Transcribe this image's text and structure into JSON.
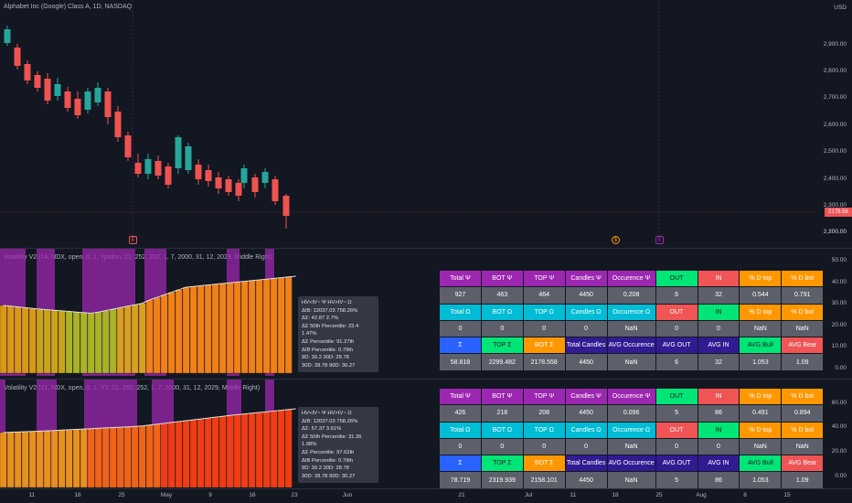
{
  "chart_header": {
    "title": "Alphabet Inc (Google) Class A, 1D, NASDAQ",
    "currency": "USD"
  },
  "price_axis": {
    "ticks": [
      "2,900.00",
      "2,800.00",
      "2,700.00",
      "2,600.00",
      "2,500.00",
      "2,400.00",
      "2,300.00",
      "2,200.00",
      "2,100.00"
    ],
    "last_price": "2178.56"
  },
  "events": [
    {
      "label": "E",
      "color": "#f05454"
    },
    {
      "label": "$",
      "color": "#ff9800"
    },
    {
      "label": "E",
      "color": "#9c27b0"
    }
  ],
  "indicator1": {
    "title": "Volatility V2 (14, NDX, open, 0, 1, Ypsilon, 21, 252, 252, 1, 7, 2000, 31, 12, 2029, Middle Right)",
    "axis_ticks": [
      "50.00",
      "40.00",
      "30.00",
      "20.00",
      "10.00",
      "0.00"
    ],
    "stats": [
      "HV<IV~ Ψ  HV>IV~ Ω",
      "ΔIB: 12037.03  758.26%",
      "ΔΣ: 42.87  2.7%",
      "ΔΣ 50th Percentile: 23.4  1.47%",
      "ΔΣ Percentile: 91.27th",
      "ΔIB Percentile: 0.79th",
      "9D: 30.2  30D: 28.78",
      "30D: 28.78  90D: 30.27"
    ],
    "table": [
      [
        {
          "t": "Total Ψ",
          "c": "c-purple"
        },
        {
          "t": "BOT Ψ",
          "c": "c-purple"
        },
        {
          "t": "TOP Ψ",
          "c": "c-purple"
        },
        {
          "t": "Candles Ψ",
          "c": "c-purple"
        },
        {
          "t": "Occurence Ψ",
          "c": "c-purple"
        },
        {
          "t": "OUT",
          "c": "c-green"
        },
        {
          "t": "IN",
          "c": "c-red"
        },
        {
          "t": "% D top",
          "c": "c-orange"
        },
        {
          "t": "% D bot",
          "c": "c-orange"
        }
      ],
      [
        {
          "t": "927",
          "c": "c-gray"
        },
        {
          "t": "463",
          "c": "c-gray"
        },
        {
          "t": "464",
          "c": "c-gray"
        },
        {
          "t": "4450",
          "c": "c-gray"
        },
        {
          "t": "0.208",
          "c": "c-gray"
        },
        {
          "t": "6",
          "c": "c-gray"
        },
        {
          "t": "32",
          "c": "c-gray"
        },
        {
          "t": "0.544",
          "c": "c-gray"
        },
        {
          "t": "0.791",
          "c": "c-gray"
        }
      ],
      [
        {
          "t": "Total Ω",
          "c": "c-cyan"
        },
        {
          "t": "BOT Ω",
          "c": "c-cyan"
        },
        {
          "t": "TOP Ω",
          "c": "c-cyan"
        },
        {
          "t": "Candles Ω",
          "c": "c-cyan"
        },
        {
          "t": "Occurence Ω",
          "c": "c-cyan"
        },
        {
          "t": "OUT",
          "c": "c-red"
        },
        {
          "t": "IN",
          "c": "c-green"
        },
        {
          "t": "% D top",
          "c": "c-orange"
        },
        {
          "t": "% D bot",
          "c": "c-orange"
        }
      ],
      [
        {
          "t": "0",
          "c": "c-gray"
        },
        {
          "t": "0",
          "c": "c-gray"
        },
        {
          "t": "0",
          "c": "c-gray"
        },
        {
          "t": "0",
          "c": "c-gray"
        },
        {
          "t": "NaN",
          "c": "c-gray"
        },
        {
          "t": "0",
          "c": "c-gray"
        },
        {
          "t": "0",
          "c": "c-gray"
        },
        {
          "t": "NaN",
          "c": "c-gray"
        },
        {
          "t": "NaN",
          "c": "c-gray"
        }
      ],
      [
        {
          "t": "Σ",
          "c": "c-blue"
        },
        {
          "t": "TOP Σ",
          "c": "c-green"
        },
        {
          "t": "BOT Σ",
          "c": "c-orange"
        },
        {
          "t": "Total Candles",
          "c": "c-dblue"
        },
        {
          "t": "AVG Occurence",
          "c": "c-dblue"
        },
        {
          "t": "AVG OUT",
          "c": "c-dblue"
        },
        {
          "t": "AVG IN",
          "c": "c-dblue"
        },
        {
          "t": "AVG Bull",
          "c": "c-green"
        },
        {
          "t": "AVG Bear",
          "c": "c-red"
        }
      ],
      [
        {
          "t": "58.818",
          "c": "c-gray"
        },
        {
          "t": "2299.482",
          "c": "c-gray"
        },
        {
          "t": "2178.558",
          "c": "c-gray"
        },
        {
          "t": "4450",
          "c": "c-gray"
        },
        {
          "t": "NaN",
          "c": "c-gray"
        },
        {
          "t": "6",
          "c": "c-gray"
        },
        {
          "t": "32",
          "c": "c-gray"
        },
        {
          "t": "1.053",
          "c": "c-gray"
        },
        {
          "t": "1.09",
          "c": "c-gray"
        }
      ]
    ]
  },
  "indicator2": {
    "title": "Volatility V2 (21, NDX, open, 0, 1, XY, 21, 252, 252, 1, 7, 2000, 31, 12, 2029, Middle Right)",
    "axis_ticks": [
      "60.00",
      "40.00",
      "20.00",
      "0.00"
    ],
    "stats": [
      "HV<IV~ Ψ  HV>IV~ Ω",
      "ΔIB: 12037.03  758.26%",
      "ΔΣ: 57.37  3.61%",
      "ΔΣ 50th Percentile: 31.36  1.98%",
      "ΔΣ Percentile: 97.62th",
      "ΔIB Percentile: 0.79th",
      "9D: 30.2  30D: 28.78",
      "30D: 28.78  90D: 30.27"
    ],
    "table": [
      [
        {
          "t": "Total Ψ",
          "c": "c-purple"
        },
        {
          "t": "BOT Ψ",
          "c": "c-purple"
        },
        {
          "t": "TOP Ψ",
          "c": "c-purple"
        },
        {
          "t": "Candles Ψ",
          "c": "c-purple"
        },
        {
          "t": "Occurence Ψ",
          "c": "c-purple"
        },
        {
          "t": "OUT",
          "c": "c-green"
        },
        {
          "t": "IN",
          "c": "c-red"
        },
        {
          "t": "% D top",
          "c": "c-orange"
        },
        {
          "t": "% D bot",
          "c": "c-orange"
        }
      ],
      [
        {
          "t": "426",
          "c": "c-gray"
        },
        {
          "t": "218",
          "c": "c-gray"
        },
        {
          "t": "208",
          "c": "c-gray"
        },
        {
          "t": "4450",
          "c": "c-gray"
        },
        {
          "t": "0.096",
          "c": "c-gray"
        },
        {
          "t": "5",
          "c": "c-gray"
        },
        {
          "t": "86",
          "c": "c-gray"
        },
        {
          "t": "0.491",
          "c": "c-gray"
        },
        {
          "t": "0.894",
          "c": "c-gray"
        }
      ],
      [
        {
          "t": "Total Ω",
          "c": "c-cyan"
        },
        {
          "t": "BOT Ω",
          "c": "c-cyan"
        },
        {
          "t": "TOP Ω",
          "c": "c-cyan"
        },
        {
          "t": "Candles Ω",
          "c": "c-cyan"
        },
        {
          "t": "Occurence Ω",
          "c": "c-cyan"
        },
        {
          "t": "OUT",
          "c": "c-red"
        },
        {
          "t": "IN",
          "c": "c-green"
        },
        {
          "t": "% D top",
          "c": "c-orange"
        },
        {
          "t": "% D bot",
          "c": "c-orange"
        }
      ],
      [
        {
          "t": "0",
          "c": "c-gray"
        },
        {
          "t": "0",
          "c": "c-gray"
        },
        {
          "t": "0",
          "c": "c-gray"
        },
        {
          "t": "0",
          "c": "c-gray"
        },
        {
          "t": "NaN",
          "c": "c-gray"
        },
        {
          "t": "0",
          "c": "c-gray"
        },
        {
          "t": "0",
          "c": "c-gray"
        },
        {
          "t": "NaN",
          "c": "c-gray"
        },
        {
          "t": "NaN",
          "c": "c-gray"
        }
      ],
      [
        {
          "t": "Σ",
          "c": "c-blue"
        },
        {
          "t": "TOP Σ",
          "c": "c-green"
        },
        {
          "t": "BOT Σ",
          "c": "c-orange"
        },
        {
          "t": "Total Candles",
          "c": "c-dblue"
        },
        {
          "t": "AVG Occurence",
          "c": "c-dblue"
        },
        {
          "t": "AVG OUT",
          "c": "c-dblue"
        },
        {
          "t": "AVG IN",
          "c": "c-dblue"
        },
        {
          "t": "AVG Bull",
          "c": "c-green"
        },
        {
          "t": "AVG Bear",
          "c": "c-red"
        }
      ],
      [
        {
          "t": "78.719",
          "c": "c-gray"
        },
        {
          "t": "2319.939",
          "c": "c-gray"
        },
        {
          "t": "2158.101",
          "c": "c-gray"
        },
        {
          "t": "4450",
          "c": "c-gray"
        },
        {
          "t": "NaN",
          "c": "c-gray"
        },
        {
          "t": "5",
          "c": "c-gray"
        },
        {
          "t": "86",
          "c": "c-gray"
        },
        {
          "t": "1.053",
          "c": "c-gray"
        },
        {
          "t": "1.09",
          "c": "c-gray"
        }
      ]
    ]
  },
  "time_axis": [
    "11",
    "18",
    "25",
    "May",
    "9",
    "16",
    "23",
    "Jun",
    "21",
    "Jul",
    "11",
    "18",
    "25",
    "Aug",
    "8",
    "15"
  ]
}
